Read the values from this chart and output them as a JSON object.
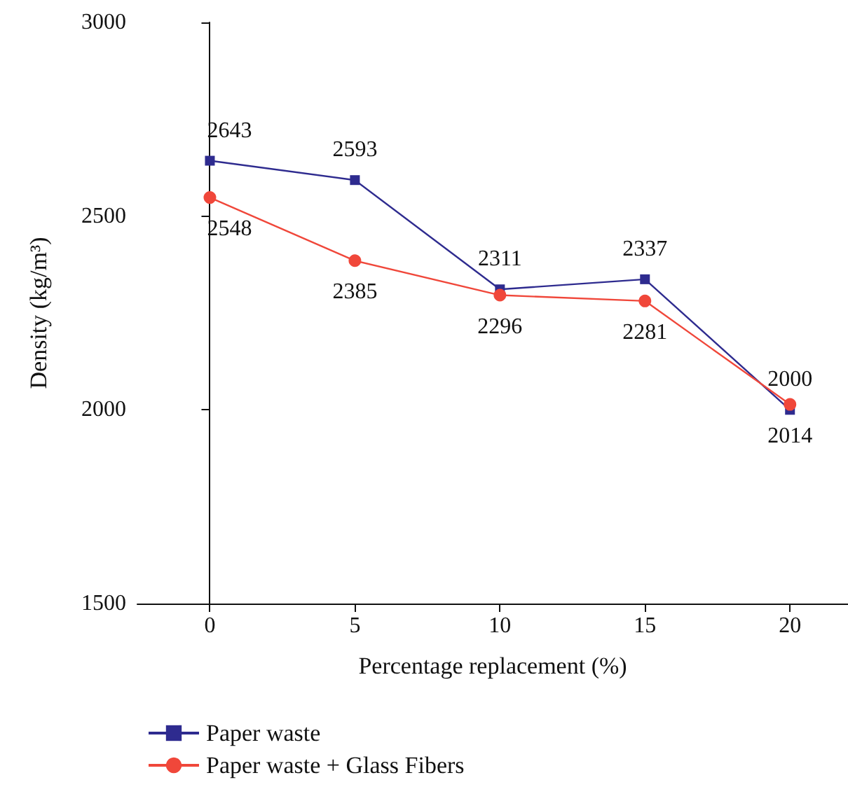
{
  "chart_data": {
    "type": "line",
    "xlabel": "Percentage replacement (%)",
    "ylabel": "Density (kg/m³)",
    "x": [
      0,
      5,
      10,
      15,
      20
    ],
    "xlim": [
      -2.5,
      22
    ],
    "xticks": [
      0,
      5,
      10,
      15,
      20
    ],
    "ylim": [
      1500,
      3000
    ],
    "yticks": [
      1500,
      2000,
      2500,
      3000
    ],
    "legend": "bottom",
    "data_labels": true,
    "series": [
      {
        "name": "Paper waste",
        "color": "#2e2b8f",
        "marker": "square",
        "values": [
          2643,
          2593,
          2311,
          2337,
          2000
        ]
      },
      {
        "name": "Paper waste + Glass Fibers",
        "color": "#f0473a",
        "marker": "circle",
        "values": [
          2548,
          2385,
          2296,
          2281,
          2014
        ]
      }
    ]
  }
}
